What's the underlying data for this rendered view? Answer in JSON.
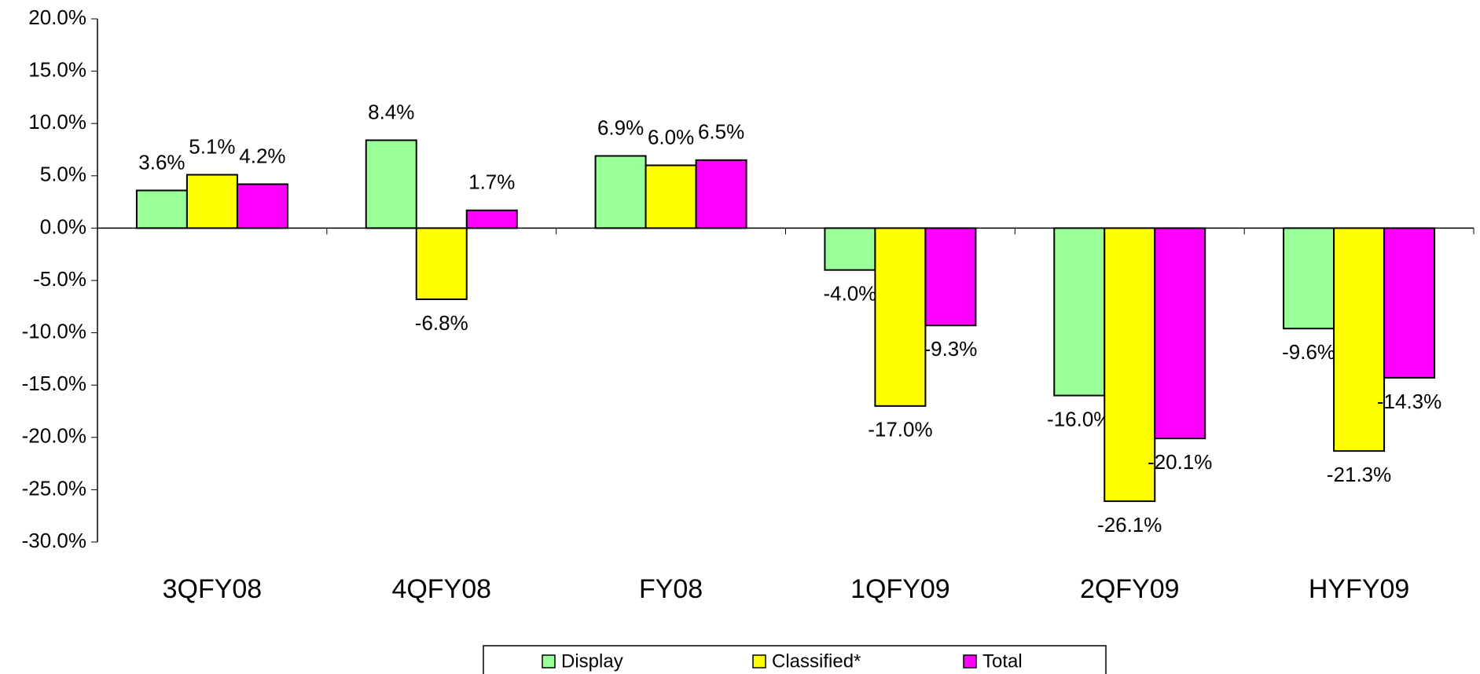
{
  "chart_data": {
    "type": "bar",
    "categories": [
      "3QFY08",
      "4QFY08",
      "FY08",
      "1QFY09",
      "2QFY09",
      "HYFY09"
    ],
    "series": [
      {
        "name": "Display",
        "color": "#99ff99",
        "values": [
          3.6,
          8.4,
          6.9,
          -4.0,
          -16.0,
          -9.6
        ],
        "value_labels": [
          "3.6%",
          "8.4%",
          "6.9%",
          "-4.0%",
          "-16.0%",
          "-9.6%"
        ]
      },
      {
        "name": "Classified*",
        "color": "#ffff00",
        "values": [
          5.1,
          -6.8,
          6.0,
          -17.0,
          -26.1,
          -21.3
        ],
        "value_labels": [
          "5.1%",
          "-6.8%",
          "6.0%",
          "-17.0%",
          "-26.1%",
          "-21.3%"
        ]
      },
      {
        "name": "Total",
        "color": "#ff00ff",
        "values": [
          4.2,
          1.7,
          6.5,
          -9.3,
          -20.1,
          -14.3
        ],
        "value_labels": [
          "4.2%",
          "1.7%",
          "6.5%",
          "-9.3%",
          "-20.1%",
          "-14.3%"
        ]
      }
    ],
    "ylim": [
      -30,
      20
    ],
    "yticks": [
      {
        "value": -30,
        "label": "-30.0%"
      },
      {
        "value": -25,
        "label": "-25.0%"
      },
      {
        "value": -20,
        "label": "-20.0%"
      },
      {
        "value": -15,
        "label": "-15.0%"
      },
      {
        "value": -10,
        "label": "-10.0%"
      },
      {
        "value": -5,
        "label": "-5.0%"
      },
      {
        "value": 0,
        "label": "0.0%"
      },
      {
        "value": 5,
        "label": "5.0%"
      },
      {
        "value": 10,
        "label": "10.0%"
      },
      {
        "value": 15,
        "label": "15.0%"
      },
      {
        "value": 20,
        "label": "20.0%"
      }
    ],
    "grid": false,
    "legend": "bottom"
  }
}
